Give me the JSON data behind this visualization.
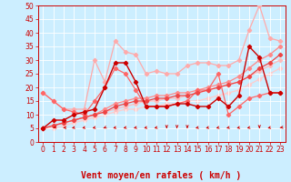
{
  "background_color": "#cceeff",
  "grid_color": "#ffffff",
  "xlabel": "Vent moyen/en rafales ( km/h )",
  "xlim": [
    -0.5,
    23.5
  ],
  "ylim": [
    0,
    50
  ],
  "yticks": [
    0,
    5,
    10,
    15,
    20,
    25,
    30,
    35,
    40,
    45,
    50
  ],
  "xticks": [
    0,
    1,
    2,
    3,
    4,
    5,
    6,
    7,
    8,
    9,
    10,
    11,
    12,
    13,
    14,
    15,
    16,
    17,
    18,
    19,
    20,
    21,
    22,
    23
  ],
  "lines": [
    {
      "x": [
        0,
        1,
        2,
        3,
        4,
        5,
        6,
        7,
        8,
        9,
        10,
        11,
        12,
        13,
        14,
        15,
        16,
        17,
        18,
        19,
        20,
        21,
        22,
        23
      ],
      "y": [
        5,
        8,
        8,
        10,
        11,
        12,
        20,
        29,
        29,
        22,
        13,
        13,
        13,
        14,
        14,
        13,
        13,
        16,
        13,
        17,
        35,
        31,
        18,
        18
      ],
      "color": "#cc0000",
      "marker": "D",
      "markersize": 2.2,
      "linewidth": 1.0,
      "zorder": 5
    },
    {
      "x": [
        0,
        1,
        2,
        3,
        4,
        5,
        6,
        7,
        8,
        9,
        10,
        11,
        12,
        13,
        14,
        15,
        16,
        17,
        18,
        19,
        20,
        21,
        22,
        23
      ],
      "y": [
        18,
        15,
        12,
        11,
        10,
        15,
        20,
        27,
        25,
        19,
        13,
        13,
        13,
        14,
        15,
        19,
        19,
        25,
        10,
        13,
        16,
        17,
        18,
        18
      ],
      "color": "#ff6666",
      "marker": "D",
      "markersize": 2.2,
      "linewidth": 0.9,
      "zorder": 4
    },
    {
      "x": [
        0,
        1,
        2,
        3,
        4,
        5,
        6,
        7,
        8,
        9,
        10,
        11,
        12,
        13,
        14,
        15,
        16,
        17,
        18,
        19,
        20,
        21,
        22,
        23
      ],
      "y": [
        18,
        15,
        12,
        12,
        12,
        30,
        22,
        37,
        33,
        32,
        25,
        26,
        25,
        25,
        28,
        29,
        29,
        28,
        28,
        30,
        41,
        50,
        38,
        37
      ],
      "color": "#ffaaaa",
      "marker": "D",
      "markersize": 2.2,
      "linewidth": 0.9,
      "zorder": 3
    },
    {
      "x": [
        0,
        1,
        2,
        3,
        4,
        5,
        6,
        7,
        8,
        9,
        10,
        11,
        12,
        13,
        14,
        15,
        16,
        17,
        18,
        19,
        20,
        21,
        22,
        23
      ],
      "y": [
        5,
        6,
        7,
        8,
        9,
        10,
        11,
        13,
        14,
        15,
        15,
        16,
        16,
        17,
        17,
        18,
        19,
        20,
        21,
        22,
        24,
        27,
        29,
        32
      ],
      "color": "#ee4444",
      "marker": "D",
      "markersize": 2.2,
      "linewidth": 0.9,
      "zorder": 4
    },
    {
      "x": [
        0,
        1,
        2,
        3,
        4,
        5,
        6,
        7,
        8,
        9,
        10,
        11,
        12,
        13,
        14,
        15,
        16,
        17,
        18,
        19,
        20,
        21,
        22,
        23
      ],
      "y": [
        5,
        6,
        7,
        8,
        9,
        10,
        12,
        14,
        15,
        16,
        16,
        17,
        17,
        18,
        18,
        19,
        20,
        21,
        22,
        24,
        27,
        30,
        32,
        35
      ],
      "color": "#ff8888",
      "marker": "D",
      "markersize": 2.2,
      "linewidth": 0.9,
      "zorder": 3
    },
    {
      "x": [
        0,
        1,
        2,
        3,
        4,
        5,
        6,
        7,
        8,
        9,
        10,
        11,
        12,
        13,
        14,
        15,
        16,
        17,
        18,
        19,
        20,
        21,
        22,
        23
      ],
      "y": [
        5,
        6,
        7,
        8,
        9,
        10,
        11,
        12,
        13,
        14,
        15,
        15,
        16,
        16,
        17,
        18,
        19,
        20,
        21,
        22,
        24,
        26,
        28,
        30
      ],
      "color": "#ffbbbb",
      "marker": "D",
      "markersize": 2.2,
      "linewidth": 0.9,
      "zorder": 2
    },
    {
      "x": [
        0,
        1,
        2,
        3,
        4,
        5,
        6,
        7,
        8,
        9,
        10,
        11,
        12,
        13,
        14,
        15,
        16,
        17,
        18,
        19,
        20,
        21,
        22,
        23
      ],
      "y": [
        5,
        5,
        6,
        7,
        8,
        9,
        10,
        11,
        12,
        12,
        13,
        13,
        14,
        14,
        15,
        15,
        16,
        17,
        18,
        19,
        21,
        23,
        25,
        27
      ],
      "color": "#ffcccc",
      "marker": "D",
      "markersize": 2.2,
      "linewidth": 0.9,
      "zorder": 1
    }
  ],
  "arrow_angles": [
    225,
    210,
    180,
    225,
    225,
    225,
    240,
    225,
    225,
    225,
    225,
    225,
    270,
    270,
    270,
    225,
    225,
    225,
    225,
    225,
    225,
    270,
    225,
    210
  ],
  "arrow_color": "#cc0000",
  "xlabel_color": "#cc0000",
  "xlabel_fontsize": 7,
  "tick_fontsize": 5.5,
  "tick_color": "#cc0000",
  "spine_color": "#cc0000"
}
